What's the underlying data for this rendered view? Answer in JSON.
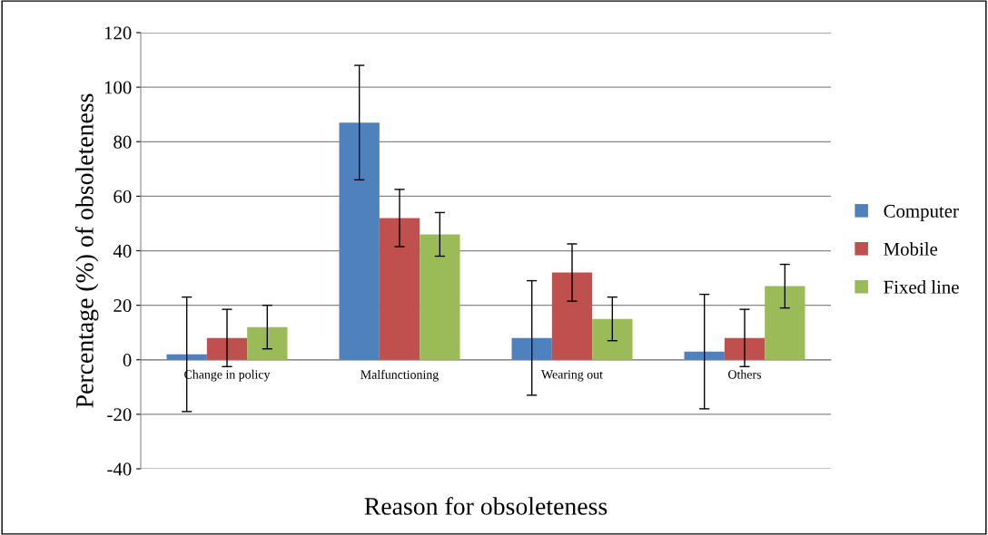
{
  "chart_data": {
    "type": "bar",
    "xlabel": "Reason for obsoleteness",
    "ylabel": "Percentage (%) of obsoleteness",
    "categories": [
      "Change in policy",
      "Malfunctioning",
      "Wearing out",
      "Others"
    ],
    "series": [
      {
        "name": "Computer",
        "color": "#4f81bd",
        "values": [
          2,
          87,
          8,
          3
        ],
        "errors": [
          21,
          21,
          21,
          21
        ]
      },
      {
        "name": "Mobile",
        "color": "#c0504d",
        "values": [
          8,
          52,
          32,
          8
        ],
        "errors": [
          10.5,
          10.5,
          10.5,
          10.5
        ]
      },
      {
        "name": "Fixed line",
        "color": "#9bbb59",
        "values": [
          12,
          46,
          15,
          27
        ],
        "errors": [
          8,
          8,
          8,
          8
        ]
      }
    ],
    "ylim": [
      -40,
      120
    ],
    "yticks": [
      -40,
      -20,
      0,
      20,
      40,
      60,
      80,
      100,
      120
    ],
    "grid": "y",
    "legend": "right"
  }
}
